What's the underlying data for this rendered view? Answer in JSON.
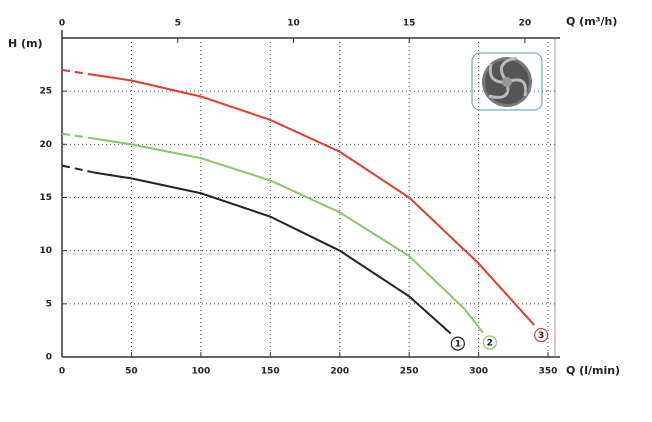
{
  "chart_data": {
    "type": "line",
    "y_label": "H (m)",
    "x_label": "Q (l/min)",
    "x2_label": "Q (m³/h)",
    "xlim": [
      0,
      355
    ],
    "xticks": [
      0,
      50,
      100,
      150,
      200,
      250,
      300,
      350
    ],
    "x2lim": [
      0,
      21.3
    ],
    "x2ticks": [
      0,
      5,
      10,
      15,
      20
    ],
    "ylim": [
      0,
      30
    ],
    "yticks": [
      0,
      5,
      10,
      15,
      20,
      25
    ],
    "grid": true,
    "series": [
      {
        "name": "1",
        "color": "#222222",
        "dashed_to": 25,
        "x": [
          0,
          25,
          50,
          100,
          150,
          200,
          250,
          280
        ],
        "values": [
          18,
          17.3,
          16.8,
          15.4,
          13.2,
          10,
          5.7,
          2.2
        ]
      },
      {
        "name": "2",
        "color": "#8cc46a",
        "dashed_to": 25,
        "x": [
          0,
          25,
          50,
          100,
          150,
          200,
          250,
          290,
          303
        ],
        "values": [
          21,
          20.5,
          20,
          18.7,
          16.6,
          13.6,
          9.5,
          4.5,
          2.3
        ]
      },
      {
        "name": "3",
        "color": "#e63a2b",
        "dashed_to": 25,
        "x": [
          0,
          25,
          50,
          100,
          150,
          200,
          250,
          300,
          340
        ],
        "values": [
          27,
          26.5,
          26,
          24.5,
          22.3,
          19.3,
          15,
          8.8,
          3
        ]
      }
    ]
  }
}
